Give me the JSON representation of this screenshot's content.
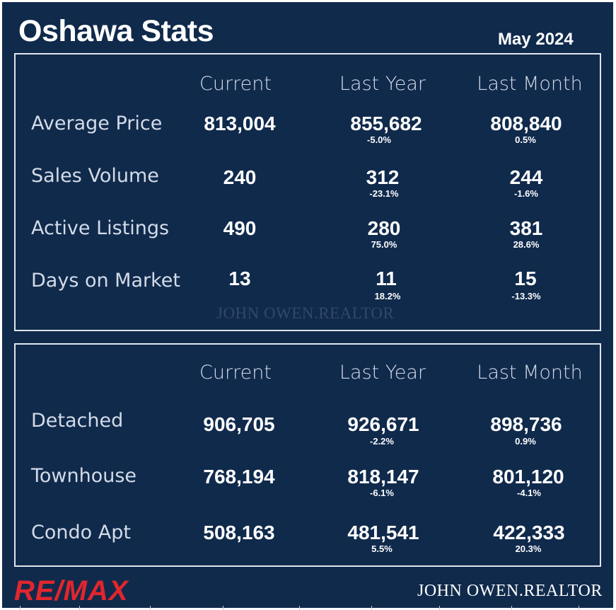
{
  "header": {
    "title": "Oshawa Stats",
    "date": "May 2024"
  },
  "colors": {
    "background": "#102a4c",
    "panel_border": "#dfe5ee",
    "text": "#ffffff",
    "label_text": "#d3dbe7",
    "brand_red": "#e1262d"
  },
  "summary": {
    "columns": [
      "Current",
      "Last Year",
      "Last Month"
    ],
    "rows": [
      {
        "label": "Average Price",
        "current": "813,004",
        "last_year": "855,682",
        "last_year_change": "-5.0%",
        "last_month": "808,840",
        "last_month_change": "0.5%"
      },
      {
        "label": "Sales Volume",
        "current": "240",
        "last_year": "312",
        "last_year_change": "-23.1%",
        "last_month": "244",
        "last_month_change": "-1.6%"
      },
      {
        "label": "Active Listings",
        "current": "490",
        "last_year": "280",
        "last_year_change": "75.0%",
        "last_month": "381",
        "last_month_change": "28.6%"
      },
      {
        "label": "Days on Market",
        "current": "13",
        "last_year": "11",
        "last_year_change": "18.2%",
        "last_month": "15",
        "last_month_change": "-13.3%"
      }
    ],
    "watermark": "JOHN OWEN.REALTOR"
  },
  "property_types": {
    "columns": [
      "Current",
      "Last Year",
      "Last Month"
    ],
    "rows": [
      {
        "label": "Detached",
        "current": "906,705",
        "last_year": "926,671",
        "last_year_change": "-2.2%",
        "last_month": "898,736",
        "last_month_change": "0.9%"
      },
      {
        "label": "Townhouse",
        "current": "768,194",
        "last_year": "818,147",
        "last_year_change": "-6.1%",
        "last_month": "801,120",
        "last_month_change": "-4.1%"
      },
      {
        "label": "Condo Apt",
        "current": "508,163",
        "last_year": "481,541",
        "last_year_change": "5.5%",
        "last_month": "422,333",
        "last_month_change": "20.3%"
      }
    ]
  },
  "footer": {
    "brand_logo": "RE/MAX",
    "signature": "JOHN OWEN.REALTOR"
  }
}
